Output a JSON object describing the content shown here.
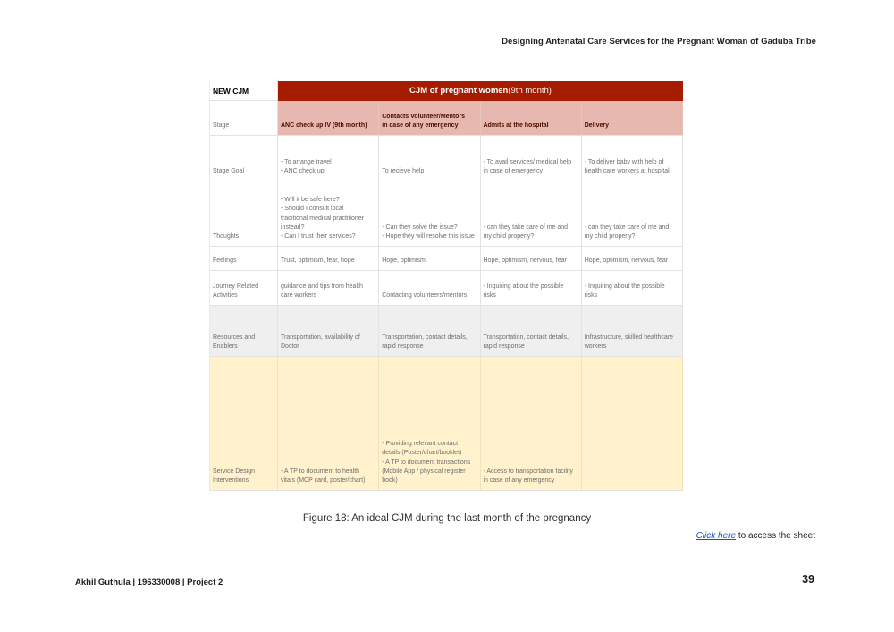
{
  "colors": {
    "header_red": "#a61c00",
    "stage_pink": "#e6b8af",
    "stage_text": "#4c0d00",
    "resources_gray": "#efefef",
    "interventions_yellow": "#fff2cc",
    "link_blue": "#1155cc"
  },
  "page": {
    "header_title": "Designing Antenatal Care Services for the Pregnant Woman of Gaduba Tribe",
    "caption": "Figure 18: An ideal CJM during the last month of the pregnancy",
    "link_text": "Click here",
    "link_suffix": " to access the sheet",
    "footer_left": "Akhil Guthula | 196330008 | Project 2",
    "page_number": "39"
  },
  "table": {
    "corner_label": "NEW CJM",
    "title_bold": "CJM of pregnant women",
    "title_suffix": " (9th month)",
    "rows": [
      {
        "label": "Stage",
        "cells": [
          "ANC check up IV (9th month)",
          "Contacts Volunteer/Mentors\nin case of any emergency",
          "Admits at the hospital",
          "Delivery"
        ]
      },
      {
        "label": "Stage Goal",
        "cells": [
          "- To arrange travel\n- ANC check up",
          "To recieve help",
          "- To avail services/ medical help\nin case of emergency",
          "- To deliver baby with help of\nhealth care workers at hospital"
        ]
      },
      {
        "label": "Thoughts",
        "cells": [
          "- Will it be safe here?\n- Should I consult local\ntraditional medical practitioner\ninstead?\n- Can I trust their services?",
          "- Can they solve the issue?\n- Hope they will resolve this issue",
          "- can they take care of me and\nmy child properly?",
          "- can they take care of me and\nmy child properly?"
        ]
      },
      {
        "label": "Feelings",
        "cells": [
          "Trust, optimism, fear, hope",
          "Hope, optimism",
          "Hope, optimism, nervous, fear",
          "Hope, optimism, nervous, fear"
        ]
      },
      {
        "label": "Journey Related\nActivities",
        "cells": [
          "guidance and tips from health\ncare workers",
          "Contacting volunteers/mentors",
          "- Inquiring about the possible\nrisks",
          "- Inquiring about the possible\nrisks"
        ]
      },
      {
        "label": "Resources and\nEnablers",
        "cells": [
          "Transportation, availability of\nDoctor",
          "Transportation, contact details,\nrapid response",
          "Transportation, contact details,\nrapid response",
          "Infrastructure, skilled healthcare\nworkers"
        ]
      },
      {
        "label": "Service Design\nInterventions",
        "cells": [
          "- A TP to document to health\nvitals (MCP card, poster/chart)",
          "- Providing relevant contact\ndetails (Poster/chart/booklet)\n- A TP to document transactions\n(Mobile App / physical register\nbook)",
          "- Access to transportation facility\nin case of any emergency",
          ""
        ]
      }
    ]
  }
}
